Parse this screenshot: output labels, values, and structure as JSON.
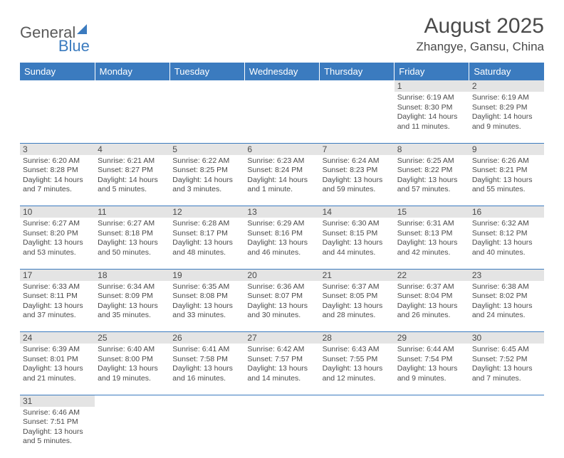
{
  "logo": {
    "general": "General",
    "blue": "Blue"
  },
  "title": "August 2025",
  "location": "Zhangye, Gansu, China",
  "weekdays": [
    "Sunday",
    "Monday",
    "Tuesday",
    "Wednesday",
    "Thursday",
    "Friday",
    "Saturday"
  ],
  "colors": {
    "header_bg": "#3b7bbf",
    "header_text": "#ffffff",
    "daynum_bg": "#e4e4e4",
    "border": "#3b7bbf",
    "text": "#4a4a4a"
  },
  "weeks": [
    [
      null,
      null,
      null,
      null,
      null,
      {
        "n": "1",
        "sr": "Sunrise: 6:19 AM",
        "ss": "Sunset: 8:30 PM",
        "dl": "Daylight: 14 hours and 11 minutes."
      },
      {
        "n": "2",
        "sr": "Sunrise: 6:19 AM",
        "ss": "Sunset: 8:29 PM",
        "dl": "Daylight: 14 hours and 9 minutes."
      }
    ],
    [
      {
        "n": "3",
        "sr": "Sunrise: 6:20 AM",
        "ss": "Sunset: 8:28 PM",
        "dl": "Daylight: 14 hours and 7 minutes."
      },
      {
        "n": "4",
        "sr": "Sunrise: 6:21 AM",
        "ss": "Sunset: 8:27 PM",
        "dl": "Daylight: 14 hours and 5 minutes."
      },
      {
        "n": "5",
        "sr": "Sunrise: 6:22 AM",
        "ss": "Sunset: 8:25 PM",
        "dl": "Daylight: 14 hours and 3 minutes."
      },
      {
        "n": "6",
        "sr": "Sunrise: 6:23 AM",
        "ss": "Sunset: 8:24 PM",
        "dl": "Daylight: 14 hours and 1 minute."
      },
      {
        "n": "7",
        "sr": "Sunrise: 6:24 AM",
        "ss": "Sunset: 8:23 PM",
        "dl": "Daylight: 13 hours and 59 minutes."
      },
      {
        "n": "8",
        "sr": "Sunrise: 6:25 AM",
        "ss": "Sunset: 8:22 PM",
        "dl": "Daylight: 13 hours and 57 minutes."
      },
      {
        "n": "9",
        "sr": "Sunrise: 6:26 AM",
        "ss": "Sunset: 8:21 PM",
        "dl": "Daylight: 13 hours and 55 minutes."
      }
    ],
    [
      {
        "n": "10",
        "sr": "Sunrise: 6:27 AM",
        "ss": "Sunset: 8:20 PM",
        "dl": "Daylight: 13 hours and 53 minutes."
      },
      {
        "n": "11",
        "sr": "Sunrise: 6:27 AM",
        "ss": "Sunset: 8:18 PM",
        "dl": "Daylight: 13 hours and 50 minutes."
      },
      {
        "n": "12",
        "sr": "Sunrise: 6:28 AM",
        "ss": "Sunset: 8:17 PM",
        "dl": "Daylight: 13 hours and 48 minutes."
      },
      {
        "n": "13",
        "sr": "Sunrise: 6:29 AM",
        "ss": "Sunset: 8:16 PM",
        "dl": "Daylight: 13 hours and 46 minutes."
      },
      {
        "n": "14",
        "sr": "Sunrise: 6:30 AM",
        "ss": "Sunset: 8:15 PM",
        "dl": "Daylight: 13 hours and 44 minutes."
      },
      {
        "n": "15",
        "sr": "Sunrise: 6:31 AM",
        "ss": "Sunset: 8:13 PM",
        "dl": "Daylight: 13 hours and 42 minutes."
      },
      {
        "n": "16",
        "sr": "Sunrise: 6:32 AM",
        "ss": "Sunset: 8:12 PM",
        "dl": "Daylight: 13 hours and 40 minutes."
      }
    ],
    [
      {
        "n": "17",
        "sr": "Sunrise: 6:33 AM",
        "ss": "Sunset: 8:11 PM",
        "dl": "Daylight: 13 hours and 37 minutes."
      },
      {
        "n": "18",
        "sr": "Sunrise: 6:34 AM",
        "ss": "Sunset: 8:09 PM",
        "dl": "Daylight: 13 hours and 35 minutes."
      },
      {
        "n": "19",
        "sr": "Sunrise: 6:35 AM",
        "ss": "Sunset: 8:08 PM",
        "dl": "Daylight: 13 hours and 33 minutes."
      },
      {
        "n": "20",
        "sr": "Sunrise: 6:36 AM",
        "ss": "Sunset: 8:07 PM",
        "dl": "Daylight: 13 hours and 30 minutes."
      },
      {
        "n": "21",
        "sr": "Sunrise: 6:37 AM",
        "ss": "Sunset: 8:05 PM",
        "dl": "Daylight: 13 hours and 28 minutes."
      },
      {
        "n": "22",
        "sr": "Sunrise: 6:37 AM",
        "ss": "Sunset: 8:04 PM",
        "dl": "Daylight: 13 hours and 26 minutes."
      },
      {
        "n": "23",
        "sr": "Sunrise: 6:38 AM",
        "ss": "Sunset: 8:02 PM",
        "dl": "Daylight: 13 hours and 24 minutes."
      }
    ],
    [
      {
        "n": "24",
        "sr": "Sunrise: 6:39 AM",
        "ss": "Sunset: 8:01 PM",
        "dl": "Daylight: 13 hours and 21 minutes."
      },
      {
        "n": "25",
        "sr": "Sunrise: 6:40 AM",
        "ss": "Sunset: 8:00 PM",
        "dl": "Daylight: 13 hours and 19 minutes."
      },
      {
        "n": "26",
        "sr": "Sunrise: 6:41 AM",
        "ss": "Sunset: 7:58 PM",
        "dl": "Daylight: 13 hours and 16 minutes."
      },
      {
        "n": "27",
        "sr": "Sunrise: 6:42 AM",
        "ss": "Sunset: 7:57 PM",
        "dl": "Daylight: 13 hours and 14 minutes."
      },
      {
        "n": "28",
        "sr": "Sunrise: 6:43 AM",
        "ss": "Sunset: 7:55 PM",
        "dl": "Daylight: 13 hours and 12 minutes."
      },
      {
        "n": "29",
        "sr": "Sunrise: 6:44 AM",
        "ss": "Sunset: 7:54 PM",
        "dl": "Daylight: 13 hours and 9 minutes."
      },
      {
        "n": "30",
        "sr": "Sunrise: 6:45 AM",
        "ss": "Sunset: 7:52 PM",
        "dl": "Daylight: 13 hours and 7 minutes."
      }
    ],
    [
      {
        "n": "31",
        "sr": "Sunrise: 6:46 AM",
        "ss": "Sunset: 7:51 PM",
        "dl": "Daylight: 13 hours and 5 minutes."
      },
      null,
      null,
      null,
      null,
      null,
      null
    ]
  ]
}
